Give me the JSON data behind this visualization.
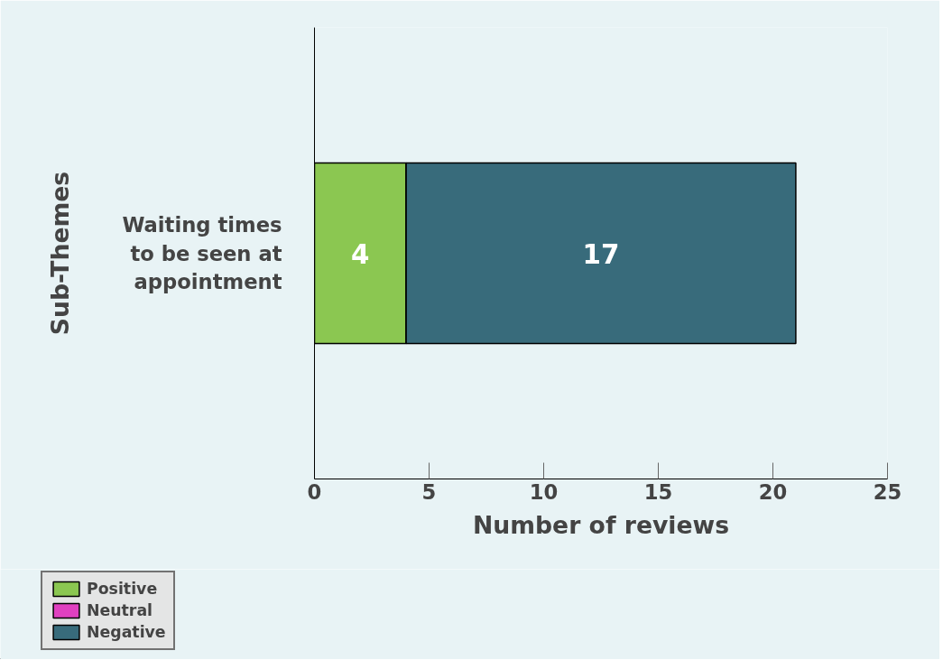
{
  "chart_data": {
    "type": "bar",
    "orientation": "horizontal",
    "stacked": true,
    "categories": [
      "Waiting times to be seen at appointment"
    ],
    "xlabel": "Number of reviews",
    "ylabel": "Sub-Themes",
    "xlim": [
      0,
      25
    ],
    "xticks": [
      0,
      5,
      10,
      15,
      20,
      25
    ],
    "legend": "bottom left",
    "series": [
      {
        "name": "Positive",
        "color": "#8bc751",
        "values": [
          4
        ],
        "value_labels": [
          "4"
        ]
      },
      {
        "name": "Neutral",
        "color": "#e040c0",
        "values": [
          0
        ],
        "value_labels": [
          null
        ]
      },
      {
        "name": "Negative",
        "color": "#386b7b",
        "values": [
          17
        ],
        "value_labels": [
          "17"
        ]
      }
    ]
  }
}
